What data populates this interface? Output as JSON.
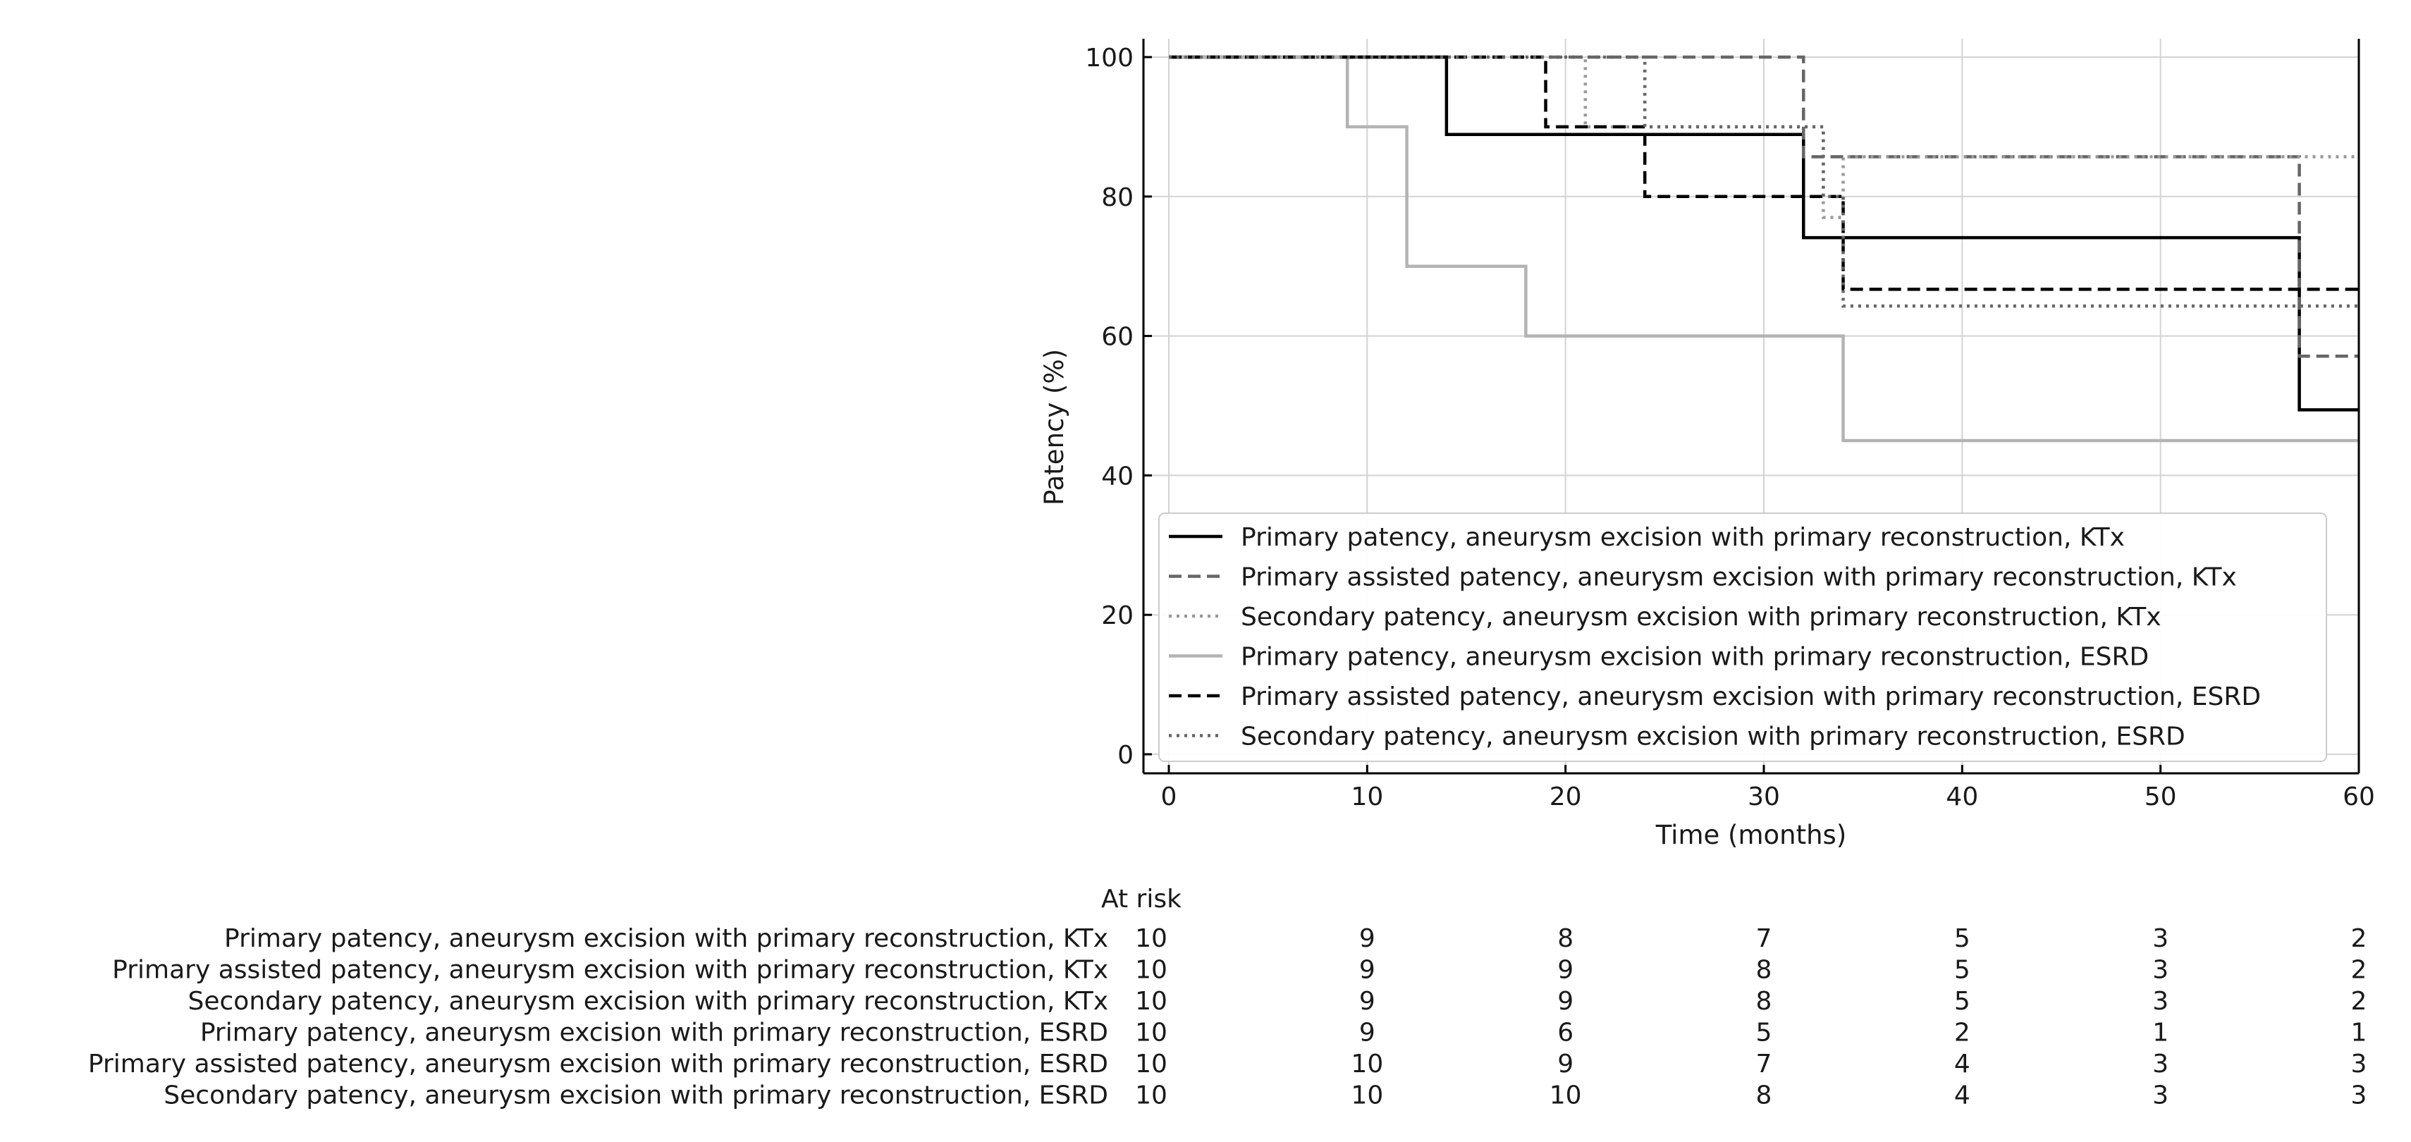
{
  "chart_data": {
    "type": "line",
    "subtype": "kaplan-meier-step",
    "title": "",
    "xlabel": "Time (months)",
    "ylabel": "Patency (%)",
    "xlim": [
      0,
      60
    ],
    "ylim": [
      0,
      100
    ],
    "xticks": [
      0,
      10,
      20,
      30,
      40,
      50,
      60
    ],
    "yticks": [
      0,
      20,
      40,
      60,
      80,
      100
    ],
    "grid": true,
    "legend_position": "lower-left",
    "series": [
      {
        "name": "Primary patency, aneurysm excision with primary reconstruction, KTx",
        "color": "#000000",
        "dash": "solid",
        "steps": [
          [
            0,
            100
          ],
          [
            14,
            88.9
          ],
          [
            32,
            74.1
          ],
          [
            57,
            49.4
          ],
          [
            60,
            49.4
          ]
        ]
      },
      {
        "name": "Primary assisted patency, aneurysm excision with primary reconstruction, KTx",
        "color": "#666666",
        "dash": "dashed",
        "steps": [
          [
            0,
            100
          ],
          [
            32,
            85.7
          ],
          [
            57,
            57.1
          ],
          [
            60,
            57.1
          ]
        ]
      },
      {
        "name": "Secondary patency, aneurysm excision with primary reconstruction, KTx",
        "color": "#999999",
        "dash": "dotted",
        "steps": [
          [
            0,
            100
          ],
          [
            21,
            90
          ],
          [
            33,
            77
          ],
          [
            34,
            85.7
          ],
          [
            60,
            85.7
          ]
        ]
      },
      {
        "name": "Primary patency, aneurysm excision with primary reconstruction, ESRD",
        "color": "#b3b3b3",
        "dash": "solid",
        "steps": [
          [
            0,
            100
          ],
          [
            9,
            90
          ],
          [
            12,
            70
          ],
          [
            18,
            60
          ],
          [
            34,
            45
          ],
          [
            60,
            45
          ]
        ]
      },
      {
        "name": "Primary assisted patency, aneurysm excision with primary reconstruction, ESRD",
        "color": "#000000",
        "dash": "dashed",
        "steps": [
          [
            0,
            100
          ],
          [
            19,
            90
          ],
          [
            24,
            80
          ],
          [
            34,
            66.7
          ],
          [
            60,
            66.7
          ]
        ]
      },
      {
        "name": "Secondary patency, aneurysm excision with primary reconstruction, ESRD",
        "color": "#666666",
        "dash": "dotted",
        "steps": [
          [
            0,
            100
          ],
          [
            24,
            90
          ],
          [
            33,
            80
          ],
          [
            34,
            64.3
          ],
          [
            60,
            64.3
          ]
        ]
      }
    ],
    "at_risk": {
      "label": "At risk",
      "times": [
        0,
        10,
        20,
        30,
        40,
        50,
        60
      ],
      "rows": [
        {
          "label": "Primary patency, aneurysm excision with primary reconstruction, KTx",
          "values": [
            "10",
            "9",
            "8",
            "7",
            "5",
            "3",
            "2"
          ]
        },
        {
          "label": "Primary assisted patency, aneurysm excision with primary reconstruction, KTx",
          "values": [
            "10",
            "9",
            "9",
            "8",
            "5",
            "3",
            "2"
          ]
        },
        {
          "label": "Secondary patency, aneurysm excision with primary reconstruction, KTx",
          "values": [
            "10",
            "9",
            "9",
            "8",
            "5",
            "3",
            "2"
          ]
        },
        {
          "label": "Primary patency, aneurysm excision with primary reconstruction, ESRD",
          "values": [
            "10",
            "9",
            "6",
            "5",
            "2",
            "1",
            "1"
          ]
        },
        {
          "label": "Primary assisted patency, aneurysm excision with primary reconstruction, ESRD",
          "values": [
            "10",
            "10",
            "9",
            "7",
            "4",
            "3",
            "3"
          ]
        },
        {
          "label": "Secondary patency, aneurysm excision with primary reconstruction, ESRD",
          "values": [
            "10",
            "10",
            "10",
            "8",
            "4",
            "3",
            "3"
          ]
        }
      ]
    }
  }
}
